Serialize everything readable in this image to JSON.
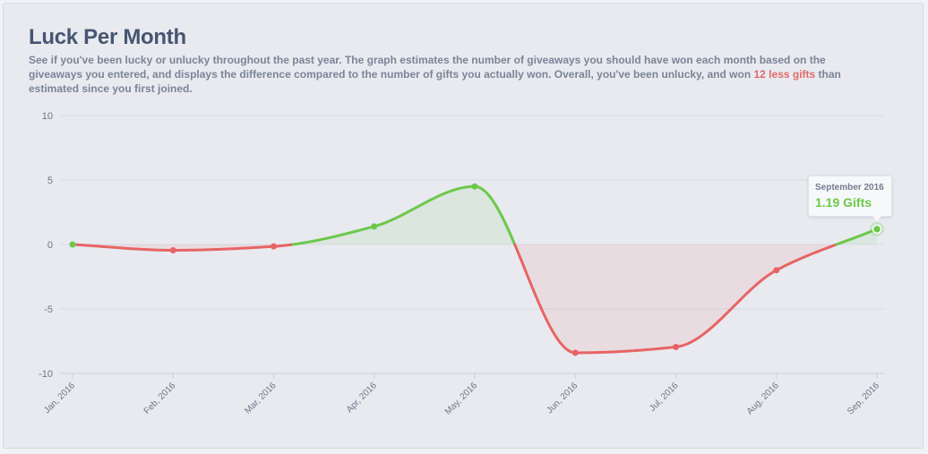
{
  "header": {
    "title": "Luck Per Month",
    "desc_before": "See if you've been lucky or unlucky throughout the past year. The graph estimates the number of giveaways you should have won each month based on the giveaways you entered, and displays the difference compared to the number of gifts you actually won. Overall, you've been unlucky, and won ",
    "desc_highlight": "12 less gifts",
    "desc_after": " than estimated since you first joined."
  },
  "colors": {
    "positive": "#6cc84a",
    "negative": "#e86464",
    "highlight_text": "#e06a6a"
  },
  "tooltip": {
    "date": "September 2016",
    "value": "1.19 Gifts"
  },
  "chart_data": {
    "type": "line",
    "title": "",
    "xlabel": "",
    "ylabel": "",
    "categories": [
      "Jan, 2016",
      "Feb, 2016",
      "Mar, 2016",
      "Apr, 2016",
      "May, 2016",
      "Jun, 2016",
      "Jul, 2016",
      "Aug, 2016",
      "Sep, 2016"
    ],
    "values": [
      0,
      -0.45,
      -0.15,
      1.4,
      4.5,
      -8.4,
      -7.95,
      -2,
      1.19
    ],
    "ylim": [
      -10,
      10
    ],
    "yticks": [
      10,
      5,
      0,
      -5,
      -10
    ],
    "grid": true,
    "smooth": true,
    "area_fill_to_zero": true
  }
}
